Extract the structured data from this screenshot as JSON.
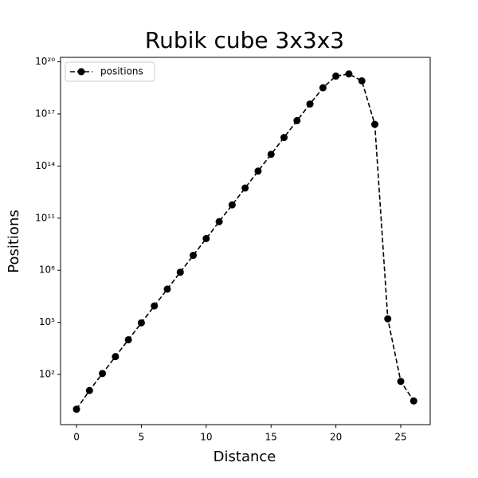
{
  "chart_data": {
    "type": "line",
    "title": "Rubik cube 3x3x3",
    "xlabel": "Distance",
    "ylabel": "Positions",
    "x": [
      0,
      1,
      2,
      3,
      4,
      5,
      6,
      7,
      8,
      9,
      10,
      11,
      12,
      13,
      14,
      15,
      16,
      17,
      18,
      19,
      20,
      21,
      22,
      23,
      24,
      25,
      26
    ],
    "series": [
      {
        "name": "positions",
        "color": "#000000",
        "values": [
          1,
          12,
          114,
          1068,
          10000,
          94000,
          880000,
          8200000,
          77000000,
          720000000,
          6700000000,
          63000000000,
          580000000000,
          5400000000000,
          51000000000000,
          470000000000000,
          4400000000000000,
          41000000000000000,
          370000000000000000,
          3200000000000000000,
          15000000000000000000,
          20000000000000000000,
          8000000000000000000,
          25000000000000000,
          160000,
          40,
          3
        ]
      }
    ],
    "xlim": [
      -1.23,
      27.27
    ],
    "xticks": [
      0,
      5,
      10,
      15,
      20,
      25
    ],
    "ylim": [
      0.13,
      180000000000000000000
    ],
    "log_y": true,
    "yticks": [
      {
        "value": 100,
        "label": "10²"
      },
      {
        "value": 100000,
        "label": "10⁵"
      },
      {
        "value": 100000000,
        "label": "10⁸"
      },
      {
        "value": 100000000000,
        "label": "10¹¹"
      },
      {
        "value": 100000000000000,
        "label": "10¹⁴"
      },
      {
        "value": 100000000000000000,
        "label": "10¹⁷"
      },
      {
        "value": 100000000000000000000,
        "label": "10²⁰"
      }
    ],
    "grid": false,
    "legend": "upper-left"
  }
}
